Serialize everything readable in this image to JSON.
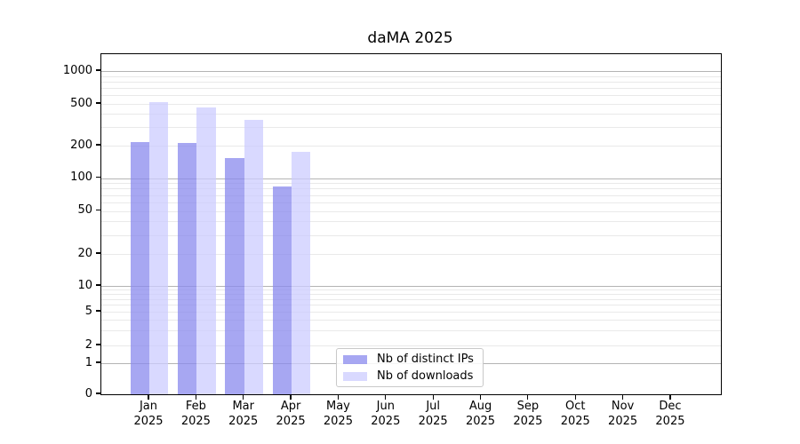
{
  "chart_data": {
    "type": "bar",
    "title": "daMA 2025",
    "categories": [
      "Jan 2025",
      "Feb 2025",
      "Mar 2025",
      "Apr 2025",
      "May 2025",
      "Jun 2025",
      "Jul 2025",
      "Aug 2025",
      "Sep 2025",
      "Oct 2025",
      "Nov 2025",
      "Dec 2025"
    ],
    "series": [
      {
        "name": "Nb of distinct IPs",
        "color": "#8888ee",
        "values": [
          215,
          210,
          152,
          84,
          0,
          0,
          0,
          0,
          0,
          0,
          0,
          0
        ]
      },
      {
        "name": "Nb of downloads",
        "color": "#ccccff",
        "values": [
          515,
          460,
          355,
          176,
          0,
          0,
          0,
          0,
          0,
          0,
          0,
          0
        ]
      }
    ],
    "bar_alpha": 0.74,
    "xlabel": "",
    "ylabel": "",
    "yscale": "symlog",
    "yticks": [
      0,
      1,
      2,
      5,
      10,
      20,
      50,
      100,
      200,
      500,
      1000
    ],
    "ylim": [
      0,
      1500
    ],
    "grid": "horizontal, major and minor log gridlines",
    "legend_position": "inside axes, lower center"
  }
}
